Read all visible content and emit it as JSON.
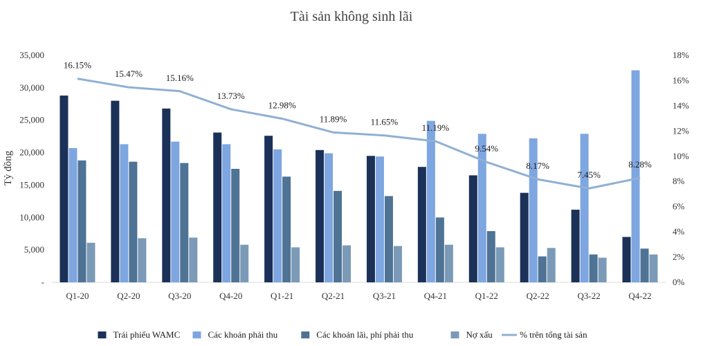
{
  "chart_data": {
    "type": "bar",
    "title": "Tài sản không sinh lãi",
    "ylabel": "Tỷ đồng",
    "y2label": "",
    "categories": [
      "Q1-20",
      "Q2-20",
      "Q3-20",
      "Q4-20",
      "Q1-21",
      "Q2-21",
      "Q3-21",
      "Q4-21",
      "Q1-22",
      "Q2-22",
      "Q3-22",
      "Q4-22"
    ],
    "ylim": [
      0,
      35000
    ],
    "y_ticks": [
      "-",
      "5,000",
      "10,000",
      "15,000",
      "20,000",
      "25,000",
      "30,000",
      "35,000"
    ],
    "y2lim": [
      0,
      18
    ],
    "y2_ticks": [
      "0%",
      "2%",
      "4%",
      "6%",
      "8%",
      "10%",
      "12%",
      "14%",
      "16%",
      "18%"
    ],
    "series": [
      {
        "name": "Trái phiếu WAMC",
        "type": "bar",
        "axis": "left",
        "color": "#1b3158",
        "values": [
          28800,
          28000,
          26800,
          23100,
          22600,
          20400,
          19500,
          17800,
          16500,
          13800,
          11200,
          7000
        ]
      },
      {
        "name": "Các khoản phải thu",
        "type": "bar",
        "axis": "left",
        "color": "#7ea6e0",
        "values": [
          20700,
          21300,
          21700,
          21300,
          20500,
          19900,
          19400,
          24900,
          22900,
          22200,
          22900,
          32700
        ]
      },
      {
        "name": "Các khoản lãi, phí phải thu",
        "type": "bar",
        "axis": "left",
        "color": "#4f7394",
        "values": [
          18800,
          18600,
          18400,
          17500,
          16300,
          14100,
          13300,
          10000,
          7900,
          4000,
          4300,
          5200
        ]
      },
      {
        "name": "Nợ xấu",
        "type": "bar",
        "axis": "left",
        "color": "#7b9ab7",
        "values": [
          6100,
          6800,
          6900,
          5800,
          5400,
          5700,
          5600,
          5800,
          5400,
          5300,
          3800,
          4300
        ]
      },
      {
        "name": "% trên tổng tài sản",
        "type": "line",
        "axis": "right",
        "color": "#8fb0d4",
        "values": [
          16.15,
          15.47,
          15.16,
          13.73,
          12.98,
          11.89,
          11.65,
          11.19,
          9.54,
          8.17,
          7.45,
          8.28
        ],
        "labels": [
          "16.15%",
          "15.47%",
          "15.16%",
          "13.73%",
          "12.98%",
          "11.89%",
          "11.65%",
          "11.19%",
          "9.54%",
          "8.17%",
          "7.45%",
          "8.28%"
        ]
      }
    ],
    "legend_position": "bottom",
    "grid": false
  }
}
